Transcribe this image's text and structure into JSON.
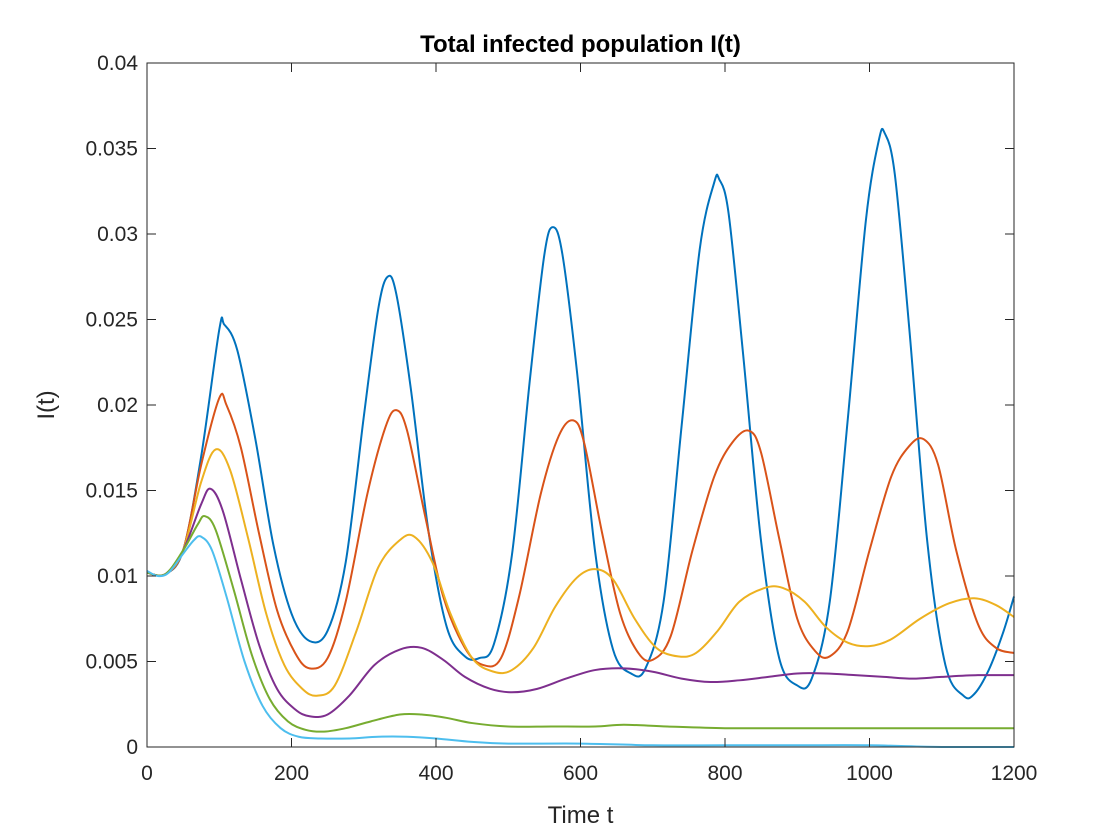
{
  "chart_data": {
    "type": "line",
    "title": "Total infected population I(t)",
    "xlabel": "Time t",
    "ylabel": "I(t)",
    "xlim": [
      0,
      1200
    ],
    "ylim": [
      0,
      0.04
    ],
    "xticks": [
      0,
      200,
      400,
      600,
      800,
      1000,
      1200
    ],
    "xtick_labels": [
      "0",
      "200",
      "400",
      "600",
      "800",
      "1000",
      "1200"
    ],
    "yticks": [
      0,
      0.005,
      0.01,
      0.015,
      0.02,
      0.025,
      0.03,
      0.035,
      0.04
    ],
    "ytick_labels": [
      "0",
      "0.005",
      "0.01",
      "0.015",
      "0.02",
      "0.025",
      "0.03",
      "0.035",
      "0.04"
    ],
    "grid": false,
    "legend": null,
    "series": [
      {
        "name": "series-1",
        "color": "#0072BD",
        "points": [
          [
            0,
            0.0102
          ],
          [
            25,
            0.0101
          ],
          [
            50,
            0.0115
          ],
          [
            75,
            0.017
          ],
          [
            100,
            0.0244
          ],
          [
            107,
            0.0247
          ],
          [
            125,
            0.0232
          ],
          [
            150,
            0.018
          ],
          [
            175,
            0.0118
          ],
          [
            200,
            0.0078
          ],
          [
            225,
            0.0062
          ],
          [
            250,
            0.0068
          ],
          [
            275,
            0.0108
          ],
          [
            300,
            0.0193
          ],
          [
            320,
            0.0256
          ],
          [
            333,
            0.0275
          ],
          [
            345,
            0.0265
          ],
          [
            365,
            0.021
          ],
          [
            390,
            0.0125
          ],
          [
            415,
            0.007
          ],
          [
            440,
            0.0053
          ],
          [
            460,
            0.0052
          ],
          [
            480,
            0.006
          ],
          [
            505,
            0.0112
          ],
          [
            530,
            0.0215
          ],
          [
            550,
            0.0288
          ],
          [
            562,
            0.0304
          ],
          [
            575,
            0.0288
          ],
          [
            595,
            0.022
          ],
          [
            620,
            0.0115
          ],
          [
            645,
            0.0057
          ],
          [
            670,
            0.0043
          ],
          [
            690,
            0.0046
          ],
          [
            715,
            0.0085
          ],
          [
            740,
            0.0188
          ],
          [
            765,
            0.0291
          ],
          [
            785,
            0.033
          ],
          [
            792,
            0.0332
          ],
          [
            805,
            0.0312
          ],
          [
            825,
            0.023
          ],
          [
            850,
            0.012
          ],
          [
            875,
            0.0052
          ],
          [
            900,
            0.0036
          ],
          [
            920,
            0.004
          ],
          [
            945,
            0.0085
          ],
          [
            970,
            0.0192
          ],
          [
            995,
            0.0308
          ],
          [
            1013,
            0.0355
          ],
          [
            1021,
            0.0359
          ],
          [
            1035,
            0.0335
          ],
          [
            1055,
            0.0245
          ],
          [
            1080,
            0.012
          ],
          [
            1105,
            0.0048
          ],
          [
            1130,
            0.003
          ],
          [
            1145,
            0.0031
          ],
          [
            1165,
            0.0045
          ],
          [
            1185,
            0.0067
          ],
          [
            1200,
            0.0088
          ]
        ]
      },
      {
        "name": "series-2",
        "color": "#D95319",
        "points": [
          [
            0,
            0.0102
          ],
          [
            25,
            0.0101
          ],
          [
            50,
            0.0115
          ],
          [
            75,
            0.0165
          ],
          [
            100,
            0.0204
          ],
          [
            110,
            0.02
          ],
          [
            130,
            0.0175
          ],
          [
            155,
            0.0125
          ],
          [
            180,
            0.008
          ],
          [
            205,
            0.0055
          ],
          [
            225,
            0.0046
          ],
          [
            250,
            0.0052
          ],
          [
            275,
            0.0085
          ],
          [
            305,
            0.0148
          ],
          [
            330,
            0.0187
          ],
          [
            345,
            0.0197
          ],
          [
            360,
            0.0185
          ],
          [
            385,
            0.0135
          ],
          [
            410,
            0.0088
          ],
          [
            440,
            0.0058
          ],
          [
            465,
            0.0048
          ],
          [
            490,
            0.0052
          ],
          [
            515,
            0.0088
          ],
          [
            545,
            0.0148
          ],
          [
            570,
            0.0182
          ],
          [
            590,
            0.0191
          ],
          [
            605,
            0.0178
          ],
          [
            630,
            0.0125
          ],
          [
            655,
            0.0078
          ],
          [
            680,
            0.0055
          ],
          [
            700,
            0.0051
          ],
          [
            725,
            0.0065
          ],
          [
            755,
            0.0115
          ],
          [
            785,
            0.0158
          ],
          [
            810,
            0.0178
          ],
          [
            833,
            0.0185
          ],
          [
            850,
            0.0172
          ],
          [
            875,
            0.0122
          ],
          [
            900,
            0.0075
          ],
          [
            925,
            0.0056
          ],
          [
            945,
            0.0053
          ],
          [
            970,
            0.0068
          ],
          [
            1000,
            0.0115
          ],
          [
            1030,
            0.0158
          ],
          [
            1055,
            0.0176
          ],
          [
            1075,
            0.018
          ],
          [
            1095,
            0.0165
          ],
          [
            1120,
            0.0115
          ],
          [
            1150,
            0.0072
          ],
          [
            1175,
            0.0058
          ],
          [
            1200,
            0.0055
          ]
        ]
      },
      {
        "name": "series-3",
        "color": "#EDB120",
        "points": [
          [
            0,
            0.0102
          ],
          [
            25,
            0.0101
          ],
          [
            50,
            0.0115
          ],
          [
            75,
            0.0155
          ],
          [
            95,
            0.0174
          ],
          [
            115,
            0.0162
          ],
          [
            140,
            0.0122
          ],
          [
            165,
            0.0078
          ],
          [
            190,
            0.0048
          ],
          [
            215,
            0.0034
          ],
          [
            235,
            0.003
          ],
          [
            260,
            0.0036
          ],
          [
            290,
            0.0068
          ],
          [
            320,
            0.0105
          ],
          [
            350,
            0.0121
          ],
          [
            370,
            0.0123
          ],
          [
            395,
            0.0108
          ],
          [
            420,
            0.0078
          ],
          [
            450,
            0.0052
          ],
          [
            480,
            0.0044
          ],
          [
            505,
            0.0045
          ],
          [
            535,
            0.0058
          ],
          [
            565,
            0.0082
          ],
          [
            595,
            0.0099
          ],
          [
            620,
            0.0104
          ],
          [
            645,
            0.0098
          ],
          [
            675,
            0.0075
          ],
          [
            705,
            0.0058
          ],
          [
            735,
            0.0053
          ],
          [
            760,
            0.0055
          ],
          [
            790,
            0.0068
          ],
          [
            820,
            0.0085
          ],
          [
            855,
            0.0093
          ],
          [
            880,
            0.0093
          ],
          [
            910,
            0.0085
          ],
          [
            940,
            0.007
          ],
          [
            970,
            0.0061
          ],
          [
            1000,
            0.0059
          ],
          [
            1030,
            0.0063
          ],
          [
            1070,
            0.0075
          ],
          [
            1110,
            0.0084
          ],
          [
            1145,
            0.0087
          ],
          [
            1175,
            0.0083
          ],
          [
            1200,
            0.0076
          ]
        ]
      },
      {
        "name": "series-4",
        "color": "#7E2F8E",
        "points": [
          [
            0,
            0.0102
          ],
          [
            25,
            0.0101
          ],
          [
            50,
            0.0115
          ],
          [
            75,
            0.0142
          ],
          [
            88,
            0.0151
          ],
          [
            105,
            0.0138
          ],
          [
            130,
            0.0098
          ],
          [
            155,
            0.006
          ],
          [
            180,
            0.0034
          ],
          [
            205,
            0.0022
          ],
          [
            225,
            0.0018
          ],
          [
            250,
            0.0019
          ],
          [
            280,
            0.003
          ],
          [
            315,
            0.0048
          ],
          [
            350,
            0.0057
          ],
          [
            380,
            0.0058
          ],
          [
            410,
            0.0051
          ],
          [
            440,
            0.0041
          ],
          [
            475,
            0.0034
          ],
          [
            505,
            0.0032
          ],
          [
            540,
            0.0034
          ],
          [
            580,
            0.004
          ],
          [
            620,
            0.0045
          ],
          [
            660,
            0.0046
          ],
          [
            700,
            0.0044
          ],
          [
            740,
            0.004
          ],
          [
            780,
            0.0038
          ],
          [
            820,
            0.0039
          ],
          [
            860,
            0.0041
          ],
          [
            900,
            0.0043
          ],
          [
            940,
            0.0043
          ],
          [
            980,
            0.0042
          ],
          [
            1020,
            0.0041
          ],
          [
            1060,
            0.004
          ],
          [
            1100,
            0.0041
          ],
          [
            1150,
            0.0042
          ],
          [
            1200,
            0.0042
          ]
        ]
      },
      {
        "name": "series-5",
        "color": "#77AC30",
        "points": [
          [
            0,
            0.0102
          ],
          [
            25,
            0.0101
          ],
          [
            50,
            0.0115
          ],
          [
            70,
            0.013
          ],
          [
            80,
            0.0135
          ],
          [
            95,
            0.0127
          ],
          [
            120,
            0.0092
          ],
          [
            145,
            0.0054
          ],
          [
            170,
            0.0028
          ],
          [
            195,
            0.0015
          ],
          [
            220,
            0.001
          ],
          [
            245,
            0.0009
          ],
          [
            275,
            0.0011
          ],
          [
            310,
            0.0015
          ],
          [
            350,
            0.0019
          ],
          [
            380,
            0.0019
          ],
          [
            415,
            0.0017
          ],
          [
            450,
            0.0014
          ],
          [
            500,
            0.0012
          ],
          [
            560,
            0.0012
          ],
          [
            620,
            0.0012
          ],
          [
            660,
            0.0013
          ],
          [
            720,
            0.0012
          ],
          [
            800,
            0.0011
          ],
          [
            900,
            0.0011
          ],
          [
            1000,
            0.0011
          ],
          [
            1100,
            0.0011
          ],
          [
            1200,
            0.0011
          ]
        ]
      },
      {
        "name": "series-6",
        "color": "#4DBEEE",
        "points": [
          [
            0,
            0.0103
          ],
          [
            15,
            0.01
          ],
          [
            30,
            0.0102
          ],
          [
            50,
            0.0113
          ],
          [
            65,
            0.0121
          ],
          [
            75,
            0.0123
          ],
          [
            90,
            0.0115
          ],
          [
            110,
            0.0088
          ],
          [
            135,
            0.005
          ],
          [
            160,
            0.0024
          ],
          [
            185,
            0.0011
          ],
          [
            210,
            0.0006
          ],
          [
            240,
            0.0005
          ],
          [
            280,
            0.0005
          ],
          [
            320,
            0.0006
          ],
          [
            360,
            0.0006
          ],
          [
            400,
            0.0005
          ],
          [
            450,
            0.0003
          ],
          [
            500,
            0.0002
          ],
          [
            600,
            0.0002
          ],
          [
            700,
            0.0001
          ],
          [
            800,
            0.0001
          ],
          [
            900,
            0.0001
          ],
          [
            1000,
            0.0001
          ],
          [
            1100,
            0.0
          ],
          [
            1200,
            0.0
          ]
        ]
      }
    ]
  }
}
